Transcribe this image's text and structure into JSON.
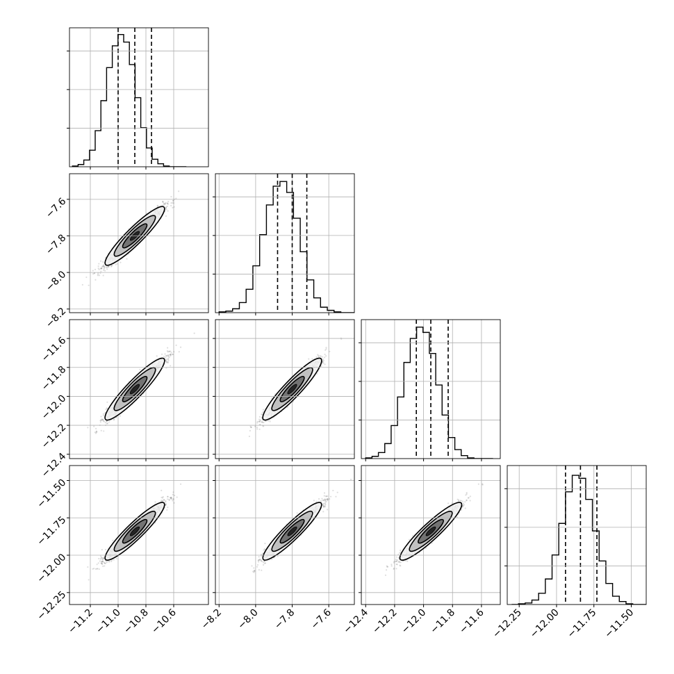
{
  "chart_data": {
    "type": "scatter",
    "subtype": "corner-plot",
    "grid": true,
    "parameters": [
      {
        "range": [
          -11.35,
          -10.35
        ],
        "ticks": [
          -11.2,
          -11.0,
          -10.8,
          -10.6
        ],
        "tick_labels": [
          "−11.2",
          "−11.0",
          "−10.8",
          "−10.6"
        ],
        "quantiles": [
          -11.0,
          -10.88,
          -10.76
        ],
        "mean": -10.88,
        "sd": 0.1
      },
      {
        "range": [
          -8.22,
          -7.46
        ],
        "ticks": [
          -8.2,
          -8.0,
          -7.8,
          -7.6
        ],
        "tick_labels": [
          "−8.2",
          "−8.0",
          "−7.8",
          "−7.6"
        ],
        "quantiles": [
          -7.88,
          -7.8,
          -7.72
        ],
        "mean": -7.8,
        "sd": 0.075
      },
      {
        "range": [
          -12.43,
          -11.47
        ],
        "ticks": [
          -12.4,
          -12.2,
          -12.0,
          -11.8,
          -11.6
        ],
        "tick_labels": [
          "−12.4",
          "−12.2",
          "−12.0",
          "−11.8",
          "−11.6"
        ],
        "quantiles": [
          -12.05,
          -11.95,
          -11.83
        ],
        "mean": -11.95,
        "sd": 0.1
      },
      {
        "range": [
          -12.33,
          -11.4
        ],
        "ticks": [
          -12.25,
          -12.0,
          -11.75,
          -11.5
        ],
        "tick_labels": [
          "−12.25",
          "−12.00",
          "−11.75",
          "−11.50"
        ],
        "quantiles": [
          -11.94,
          -11.84,
          -11.73
        ],
        "mean": -11.84,
        "sd": 0.09
      }
    ],
    "histograms": [
      {
        "bins": [
          -11.329,
          -11.288,
          -11.247,
          -11.206,
          -11.165,
          -11.124,
          -11.083,
          -11.042,
          -11.001,
          -10.96,
          -10.919,
          -10.878,
          -10.837,
          -10.796,
          -10.755,
          -10.714,
          -10.673,
          -10.632,
          -10.591,
          -10.55,
          -10.509
        ],
        "counts": [
          1,
          3,
          9,
          22,
          48,
          88,
          132,
          161,
          176,
          166,
          136,
          92,
          52,
          25,
          10,
          4,
          1,
          0,
          0,
          0
        ],
        "ymax": 185
      },
      {
        "bins": [
          -8.2,
          -8.163,
          -8.126,
          -8.089,
          -8.052,
          -8.015,
          -7.978,
          -7.941,
          -7.904,
          -7.867,
          -7.83,
          -7.793,
          -7.756,
          -7.719,
          -7.682,
          -7.645,
          -7.608,
          -7.571,
          -7.534,
          -7.497,
          -7.46
        ],
        "counts": [
          1,
          2,
          5,
          13,
          30,
          60,
          100,
          138,
          162,
          168,
          154,
          121,
          78,
          42,
          19,
          7,
          3,
          1,
          0,
          0
        ],
        "ymax": 178
      },
      {
        "bins": [
          -12.4,
          -12.356,
          -12.312,
          -12.268,
          -12.224,
          -12.18,
          -12.136,
          -12.092,
          -12.048,
          -12.004,
          -11.96,
          -11.916,
          -11.872,
          -11.828,
          -11.784,
          -11.74,
          -11.696,
          -11.652,
          -11.608,
          -11.564,
          -11.52
        ],
        "counts": [
          1,
          3,
          8,
          20,
          44,
          82,
          128,
          160,
          175,
          168,
          140,
          98,
          58,
          28,
          12,
          4,
          1,
          0,
          0,
          0
        ],
        "ymax": 185
      },
      {
        "bins": [
          -12.3,
          -12.255,
          -12.21,
          -12.165,
          -12.12,
          -12.075,
          -12.03,
          -11.985,
          -11.94,
          -11.895,
          -11.85,
          -11.805,
          -11.76,
          -11.715,
          -11.67,
          -11.625,
          -11.58,
          -11.535,
          -11.49,
          -11.445,
          -11.4
        ],
        "counts": [
          0,
          1,
          2,
          6,
          15,
          34,
          66,
          108,
          150,
          172,
          168,
          140,
          98,
          58,
          28,
          11,
          4,
          1,
          0,
          0
        ],
        "ymax": 185
      }
    ]
  }
}
